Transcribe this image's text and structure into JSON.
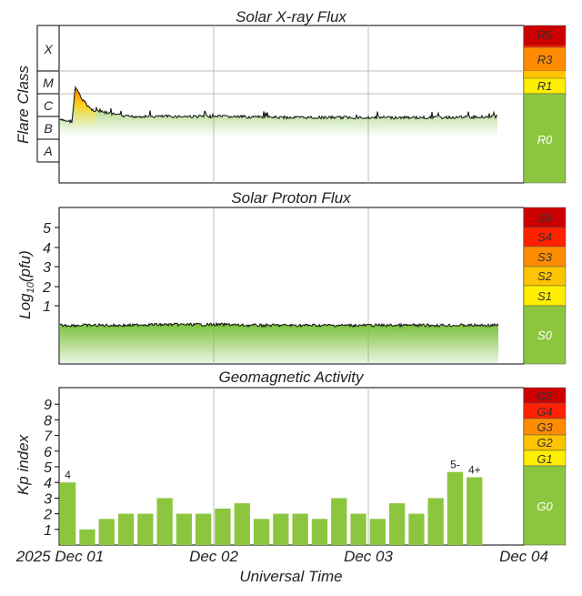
{
  "header": {
    "xray_title": "Solar X-ray Flux",
    "proton_title": "Solar Proton Flux",
    "geo_title": "Geomagnetic Activity"
  },
  "colors": {
    "green": "#8cc63f",
    "yellow": "#ffee00",
    "amber": "#ffc400",
    "orange": "#ff8c00",
    "red": "#ff2000",
    "darkred": "#cc0000"
  },
  "chart_data": [
    {
      "type": "area",
      "title": "Solar X-ray Flux",
      "ylabel": "Flare Class",
      "y_classes": [
        "X",
        "M",
        "C",
        "B",
        "A"
      ],
      "x_start": "2025-12-01T00:00Z",
      "x_end": "2025-12-04T00:00Z",
      "x_data_end": "2025-12-03T20:00Z",
      "scale_labels": [
        "R5",
        "R3",
        "R1",
        "R0"
      ],
      "flux_class_profile": [
        [
          "2025-12-01T00:00Z",
          "B7"
        ],
        [
          "2025-12-01T02:00Z",
          "B6"
        ],
        [
          "2025-12-01T02:30Z",
          "M2"
        ],
        [
          "2025-12-01T03:30Z",
          "C6"
        ],
        [
          "2025-12-01T05:00Z",
          "C2"
        ],
        [
          "2025-12-01T10:00Z",
          "C1"
        ],
        [
          "2025-12-02T00:00Z",
          "C1"
        ],
        [
          "2025-12-02T12:00Z",
          "B9"
        ],
        [
          "2025-12-03T00:00Z",
          "B9"
        ],
        [
          "2025-12-03T12:00Z",
          "B9"
        ],
        [
          "2025-12-03T20:00Z",
          "C1"
        ]
      ]
    },
    {
      "type": "area",
      "title": "Solar Proton Flux",
      "ylabel": "Log10(pfu)",
      "y_ticks": [
        1,
        2,
        3,
        4,
        5
      ],
      "x_start": "2025-12-01T00:00Z",
      "x_end": "2025-12-04T00:00Z",
      "approx_log10_pfu": -0.5,
      "scale_labels": [
        "S5",
        "S4",
        "S3",
        "S2",
        "S1",
        "S0"
      ]
    },
    {
      "type": "bar",
      "title": "Geomagnetic Activity",
      "ylabel": "Kp index",
      "xlabel": "Universal Time",
      "ylim": [
        0,
        9
      ],
      "y_ticks": [
        1,
        2,
        3,
        4,
        5,
        6,
        7,
        8,
        9
      ],
      "interval_hours": 3,
      "x_start": "2025-12-01T00:00Z",
      "values": [
        4,
        1,
        1.67,
        2,
        2,
        3,
        2,
        2,
        2.33,
        2.67,
        1.67,
        2,
        2,
        1.67,
        3,
        2,
        1.67,
        2.67,
        2,
        3,
        4.67,
        4.33
      ],
      "bar_labels": [
        "4",
        "",
        "",
        "",
        "",
        "",
        "",
        "",
        "",
        "",
        "",
        "",
        "",
        "",
        "",
        "",
        "",
        "",
        "",
        "",
        "5-",
        "4+"
      ],
      "scale_labels": [
        "G5",
        "G4",
        "G3",
        "G2",
        "G1",
        "G0"
      ],
      "x_tick_labels": [
        "2025 Dec 01",
        "Dec 02",
        "Dec 03",
        "Dec 04"
      ]
    }
  ]
}
